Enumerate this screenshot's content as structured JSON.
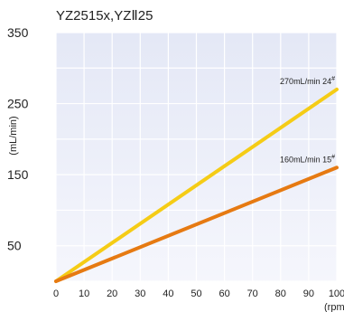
{
  "chart_data": {
    "type": "line",
    "title": "YZ2515x,YZⅡ25",
    "xlabel": "(rpm)",
    "ylabel": "(mL/min)",
    "xlim": [
      0,
      100
    ],
    "ylim": [
      0,
      350
    ],
    "xticks": [
      "0",
      "10",
      "20",
      "30",
      "40",
      "50",
      "60",
      "70",
      "80",
      "90",
      "100"
    ],
    "yticks": [
      {
        "label": "350",
        "value": 350
      },
      {
        "label": "250",
        "value": 250
      },
      {
        "label": "150",
        "value": 150
      },
      {
        "label": "50",
        "value": 50
      }
    ],
    "grid": true,
    "series": [
      {
        "label_main": "270mL/min",
        "label_code": "24",
        "label_sup": "#",
        "color": "#f5cc16",
        "x": [
          0,
          100
        ],
        "y": [
          0,
          270
        ]
      },
      {
        "label_main": "160mL/min",
        "label_code": "15",
        "label_sup": "#",
        "color": "#e67a12",
        "x": [
          0,
          100
        ],
        "y": [
          0,
          160
        ]
      }
    ]
  }
}
